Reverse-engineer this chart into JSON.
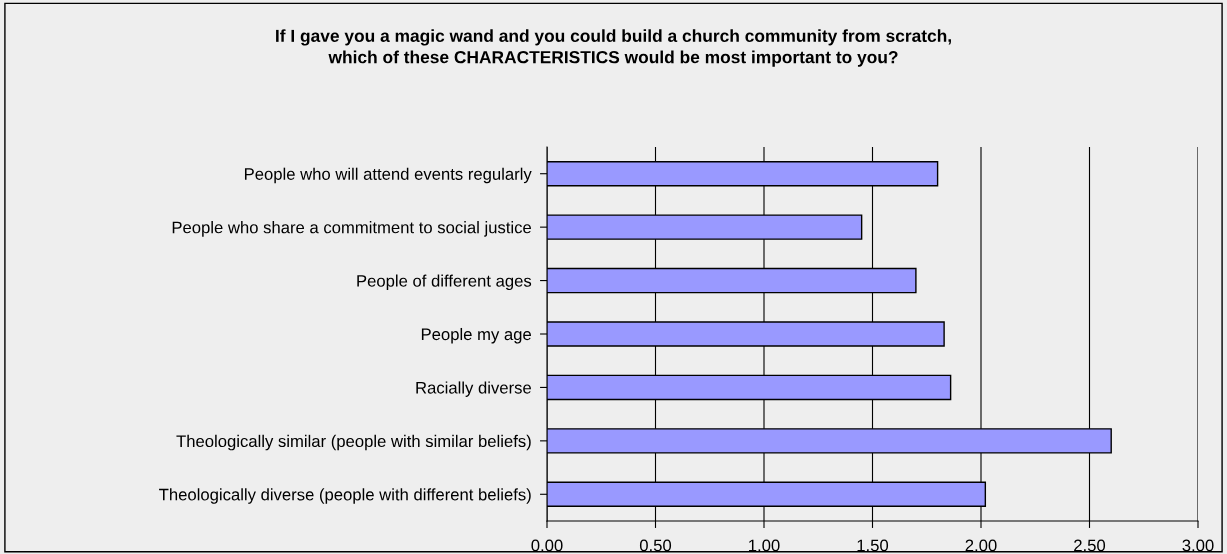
{
  "chart_data": {
    "type": "bar",
    "orientation": "horizontal",
    "title": "If I gave you a magic wand and you could build a church community from scratch,\nwhich of these CHARACTERISTICS would be most important to you?",
    "categories": [
      "People who will attend events regularly",
      "People who share a commitment to social justice",
      "People of different ages",
      "People my age",
      "Racially diverse",
      "Theologically similar (people with similar beliefs)",
      "Theologically diverse (people with different beliefs)"
    ],
    "values": [
      1.8,
      1.45,
      1.7,
      1.83,
      1.86,
      2.6,
      2.02
    ],
    "color": "#9999ff",
    "xlim": [
      0,
      3
    ],
    "xticks": [
      {
        "value": 0,
        "label": "0.00"
      },
      {
        "value": 0.5,
        "label": "0.50"
      },
      {
        "value": 1,
        "label": "1.00"
      },
      {
        "value": 1.5,
        "label": "1.50"
      },
      {
        "value": 2,
        "label": "2.00"
      },
      {
        "value": 2.5,
        "label": "2.50"
      },
      {
        "value": 3,
        "label": "3.00"
      }
    ],
    "grid": "x",
    "legend": false
  }
}
